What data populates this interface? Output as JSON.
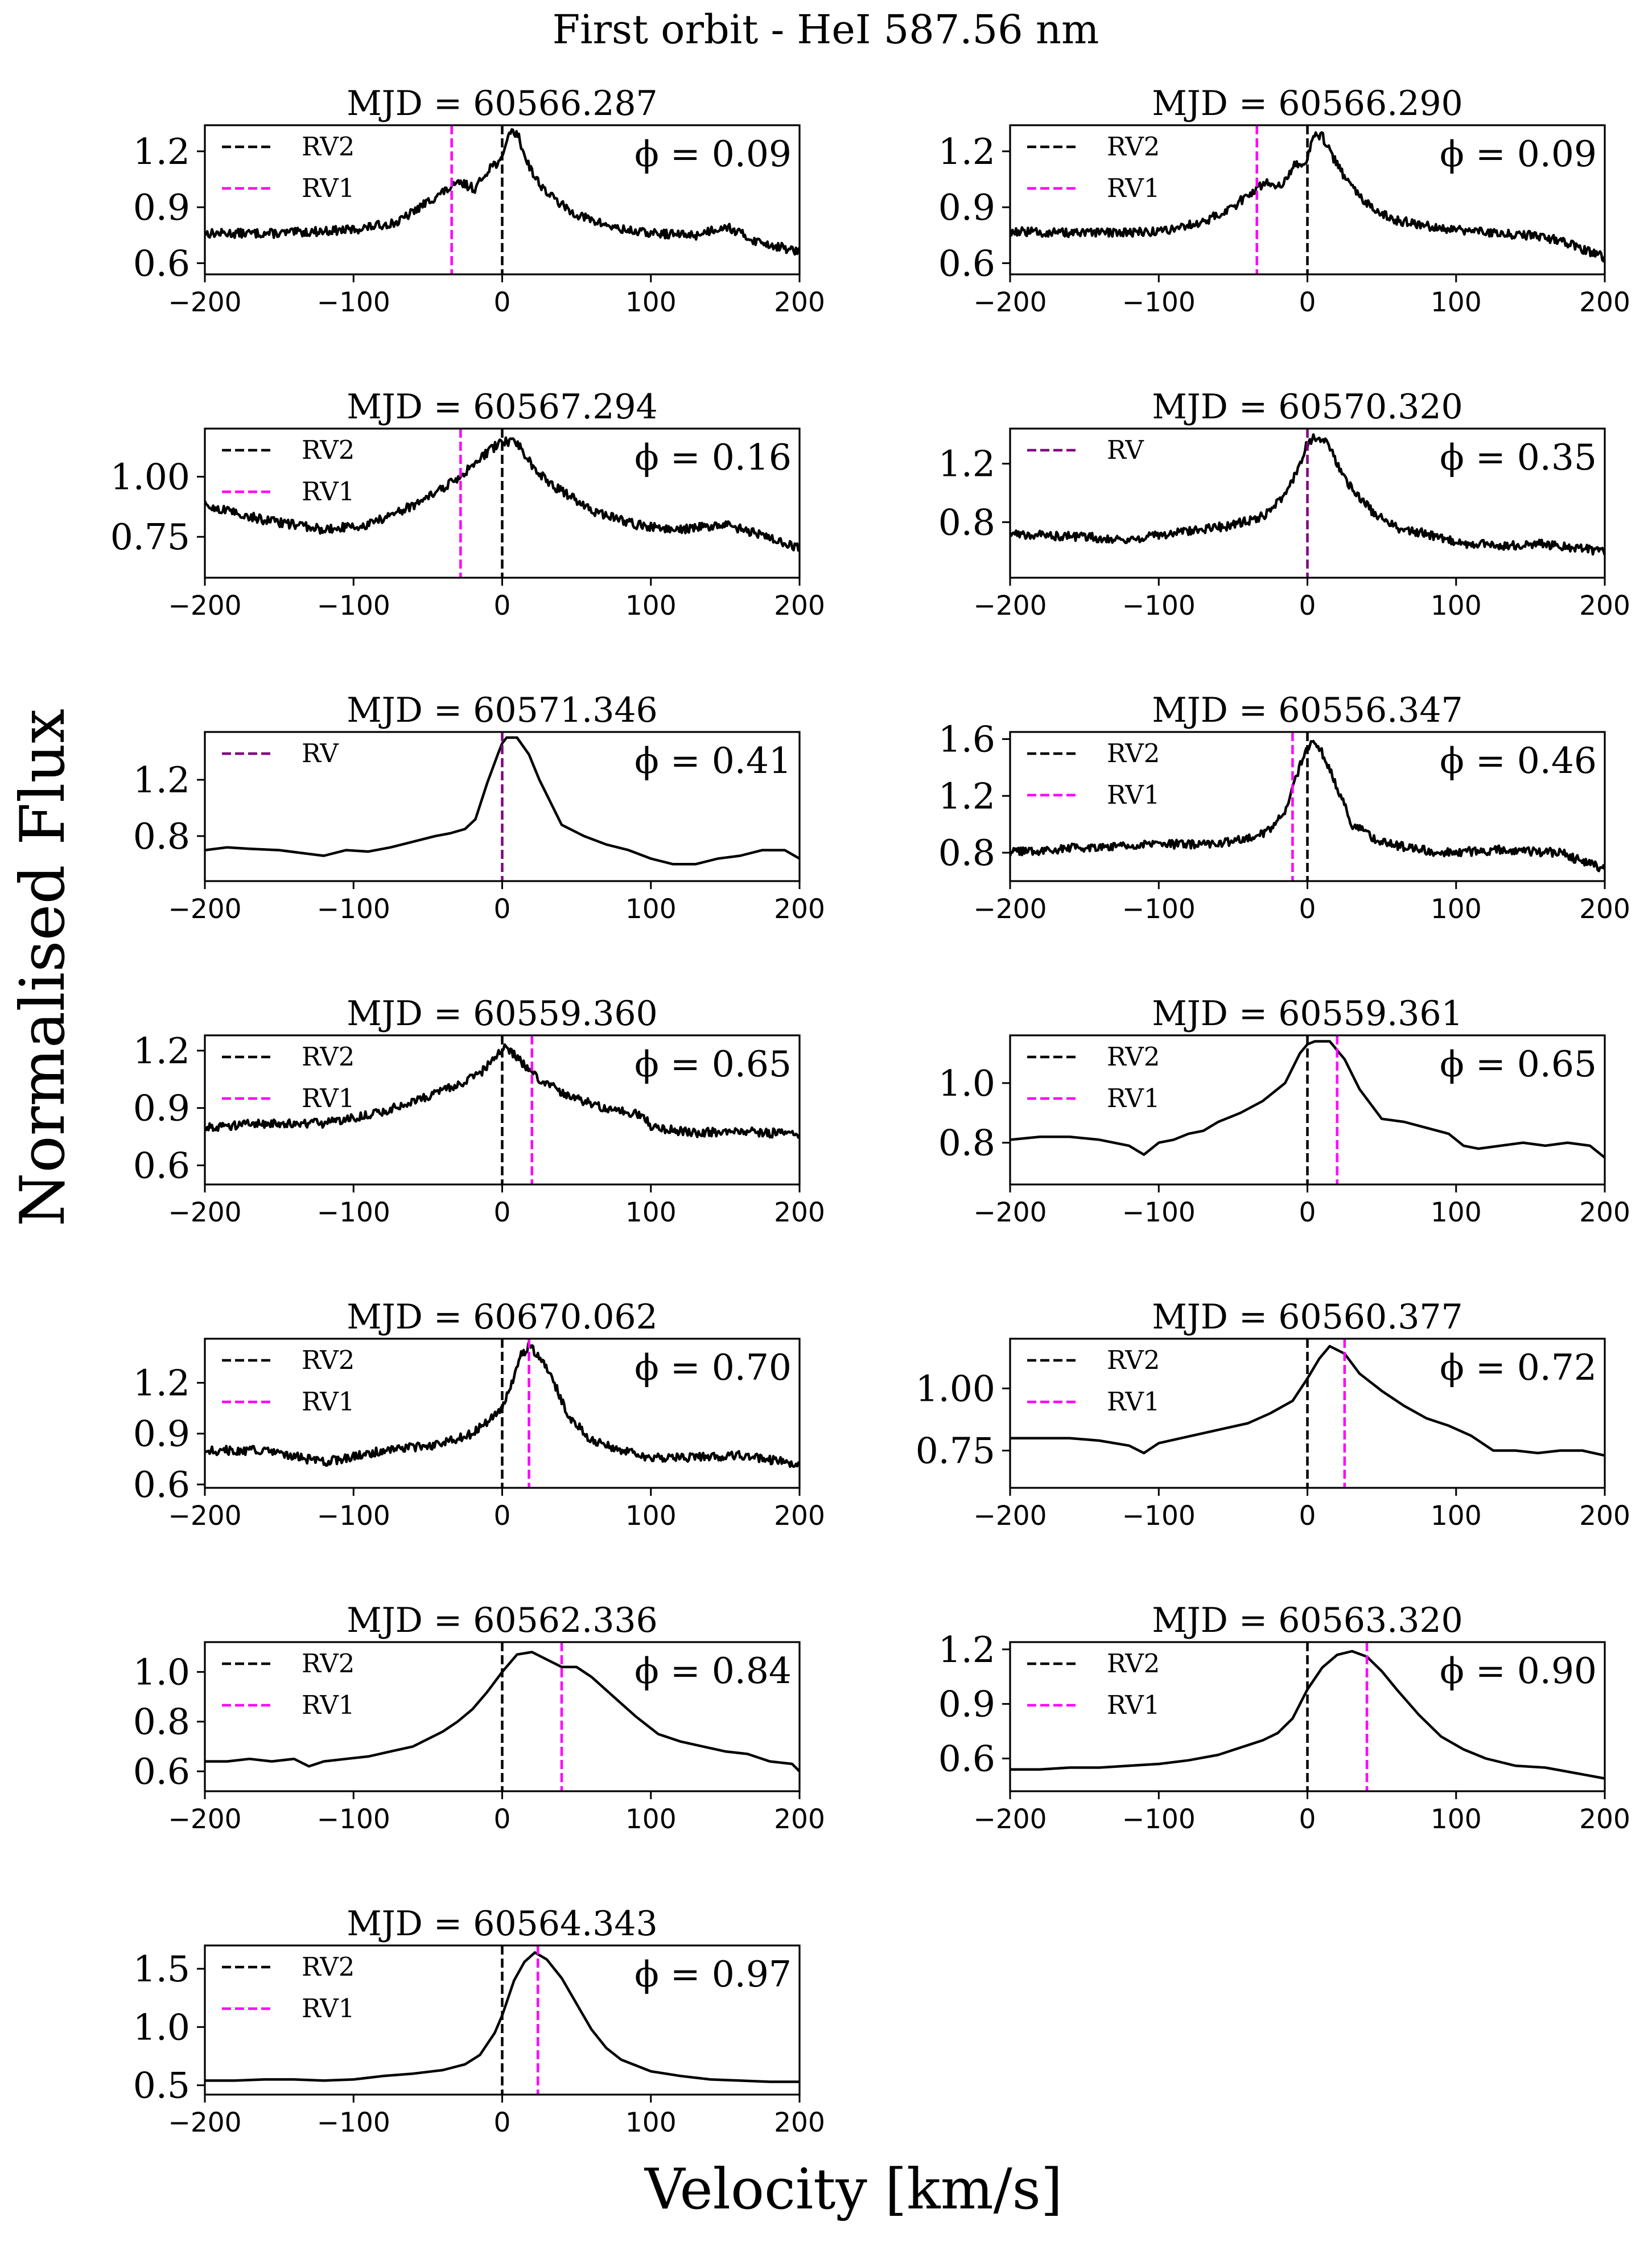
{
  "figure": {
    "title": "First orbit - HeI 587.56 nm",
    "xlabel": "Velocity [km/s]",
    "ylabel": "Normalised Flux"
  },
  "colors": {
    "line": "#000000",
    "rv1": "#ff00ff",
    "rv2": "#000000",
    "rv": "#800080"
  },
  "chart_data": [
    {
      "type": "line",
      "title": "MJD = 60566.287",
      "phase_label": "ϕ = 0.09",
      "style": "noisy",
      "xlim": [
        -200,
        200
      ],
      "ylim": [
        0.54,
        1.34
      ],
      "xticks": [
        -200,
        -100,
        0,
        100,
        200
      ],
      "xtick_labels": [
        "−200",
        "−100",
        "0",
        "100",
        "200"
      ],
      "yticks": [
        0.6,
        0.9,
        1.2
      ],
      "ytick_labels": [
        "0.6",
        "0.9",
        "1.2"
      ],
      "rv_lines": [
        {
          "name": "RV2",
          "v": 0
        },
        {
          "name": "RV1",
          "v": -34
        }
      ],
      "x": [
        -200,
        -150,
        -100,
        -70,
        -50,
        -38,
        -28,
        -18,
        -8,
        0,
        4,
        10,
        15,
        22,
        30,
        45,
        60,
        80,
        100,
        130,
        150,
        170,
        200
      ],
      "y": [
        0.76,
        0.76,
        0.78,
        0.82,
        0.93,
        0.99,
        1.03,
        1.0,
        1.12,
        1.15,
        1.3,
        1.3,
        1.18,
        1.06,
        0.98,
        0.88,
        0.83,
        0.78,
        0.76,
        0.75,
        0.8,
        0.72,
        0.66
      ]
    },
    {
      "type": "line",
      "title": "MJD = 60566.290",
      "phase_label": "ϕ = 0.09",
      "style": "noisy",
      "xlim": [
        -200,
        200
      ],
      "ylim": [
        0.54,
        1.34
      ],
      "xticks": [
        -200,
        -100,
        0,
        100,
        200
      ],
      "xtick_labels": [
        "−200",
        "−100",
        "0",
        "100",
        "200"
      ],
      "yticks": [
        0.6,
        0.9,
        1.2
      ],
      "ytick_labels": [
        "0.6",
        "0.9",
        "1.2"
      ],
      "rv_lines": [
        {
          "name": "RV2",
          "v": 0
        },
        {
          "name": "RV1",
          "v": -34
        }
      ],
      "x": [
        -200,
        -150,
        -100,
        -70,
        -50,
        -38,
        -28,
        -18,
        -8,
        0,
        4,
        10,
        15,
        22,
        30,
        45,
        60,
        80,
        100,
        130,
        150,
        170,
        200
      ],
      "y": [
        0.77,
        0.76,
        0.77,
        0.82,
        0.9,
        0.98,
        1.03,
        1.02,
        1.13,
        1.15,
        1.3,
        1.28,
        1.2,
        1.1,
        1.0,
        0.88,
        0.83,
        0.8,
        0.78,
        0.76,
        0.75,
        0.72,
        0.63
      ]
    },
    {
      "type": "line",
      "title": "MJD = 60567.294",
      "phase_label": "ϕ = 0.16",
      "style": "noisy",
      "xlim": [
        -200,
        200
      ],
      "ylim": [
        0.58,
        1.2
      ],
      "xticks": [
        -200,
        -100,
        0,
        100,
        200
      ],
      "xtick_labels": [
        "−200",
        "−100",
        "0",
        "100",
        "200"
      ],
      "yticks": [
        0.75,
        1.0
      ],
      "ytick_labels": [
        "0.75",
        "1.00"
      ],
      "rv_lines": [
        {
          "name": "RV2",
          "v": 0
        },
        {
          "name": "RV1",
          "v": -28
        }
      ],
      "x": [
        -200,
        -160,
        -120,
        -90,
        -60,
        -40,
        -25,
        -10,
        0,
        10,
        20,
        30,
        45,
        60,
        90,
        120,
        150,
        180,
        200
      ],
      "y": [
        0.88,
        0.82,
        0.78,
        0.8,
        0.88,
        0.95,
        1.02,
        1.1,
        1.15,
        1.14,
        1.05,
        0.98,
        0.92,
        0.86,
        0.8,
        0.78,
        0.8,
        0.75,
        0.7
      ]
    },
    {
      "type": "line",
      "title": "MJD = 60570.320",
      "phase_label": "ϕ = 0.35",
      "style": "noisy",
      "xlim": [
        -200,
        200
      ],
      "ylim": [
        0.42,
        1.44
      ],
      "xticks": [
        -200,
        -100,
        0,
        100,
        200
      ],
      "xtick_labels": [
        "−200",
        "−100",
        "0",
        "100",
        "200"
      ],
      "yticks": [
        0.8,
        1.2
      ],
      "ytick_labels": [
        "0.8",
        "1.2"
      ],
      "rv_lines": [
        {
          "name": "RV",
          "v": 0
        }
      ],
      "x": [
        -200,
        -150,
        -120,
        -80,
        -50,
        -30,
        -15,
        -5,
        0,
        5,
        12,
        20,
        30,
        45,
        60,
        80,
        100,
        130,
        160,
        200
      ],
      "y": [
        0.72,
        0.7,
        0.68,
        0.74,
        0.78,
        0.84,
        0.98,
        1.2,
        1.34,
        1.38,
        1.36,
        1.2,
        1.02,
        0.86,
        0.76,
        0.72,
        0.66,
        0.64,
        0.65,
        0.6
      ]
    },
    {
      "type": "line",
      "title": "MJD = 60571.346",
      "phase_label": "ϕ = 0.41",
      "style": "smooth",
      "xlim": [
        -200,
        200
      ],
      "ylim": [
        0.48,
        1.54
      ],
      "xticks": [
        -200,
        -100,
        0,
        100,
        200
      ],
      "xtick_labels": [
        "−200",
        "−100",
        "0",
        "100",
        "200"
      ],
      "yticks": [
        0.8,
        1.2
      ],
      "ytick_labels": [
        "0.8",
        "1.2"
      ],
      "rv_lines": [
        {
          "name": "RV",
          "v": 0
        }
      ],
      "x": [
        -200,
        -185,
        -170,
        -150,
        -135,
        -120,
        -105,
        -90,
        -75,
        -60,
        -45,
        -35,
        -25,
        -18,
        -10,
        -3,
        0,
        3,
        10,
        18,
        25,
        40,
        55,
        70,
        85,
        100,
        115,
        130,
        145,
        160,
        175,
        190,
        200
      ],
      "y": [
        0.7,
        0.72,
        0.71,
        0.7,
        0.68,
        0.66,
        0.7,
        0.69,
        0.72,
        0.76,
        0.8,
        0.82,
        0.85,
        0.92,
        1.18,
        1.38,
        1.46,
        1.5,
        1.5,
        1.38,
        1.2,
        0.88,
        0.8,
        0.74,
        0.7,
        0.64,
        0.6,
        0.6,
        0.64,
        0.66,
        0.7,
        0.7,
        0.64
      ]
    },
    {
      "type": "line",
      "title": "MJD = 60556.347",
      "phase_label": "ϕ = 0.46",
      "style": "noisy",
      "xlim": [
        -200,
        200
      ],
      "ylim": [
        0.6,
        1.65
      ],
      "xticks": [
        -200,
        -100,
        0,
        100,
        200
      ],
      "xtick_labels": [
        "−200",
        "−100",
        "0",
        "100",
        "200"
      ],
      "yticks": [
        0.8,
        1.2,
        1.6
      ],
      "ytick_labels": [
        "0.8",
        "1.2",
        "1.6"
      ],
      "rv_lines": [
        {
          "name": "RV2",
          "v": 0
        },
        {
          "name": "RV1",
          "v": -10
        }
      ],
      "x": [
        -200,
        -150,
        -100,
        -60,
        -40,
        -25,
        -15,
        -8,
        -2,
        2,
        8,
        15,
        22,
        30,
        45,
        60,
        90,
        130,
        170,
        200
      ],
      "y": [
        0.8,
        0.84,
        0.86,
        0.86,
        0.9,
        0.96,
        1.1,
        1.32,
        1.5,
        1.58,
        1.54,
        1.4,
        1.2,
        1.0,
        0.9,
        0.85,
        0.8,
        0.82,
        0.8,
        0.68
      ]
    },
    {
      "type": "line",
      "title": "MJD = 60559.360",
      "phase_label": "ϕ = 0.65",
      "style": "noisy",
      "xlim": [
        -200,
        200
      ],
      "ylim": [
        0.5,
        1.28
      ],
      "xticks": [
        -200,
        -100,
        0,
        100,
        200
      ],
      "xtick_labels": [
        "−200",
        "−100",
        "0",
        "100",
        "200"
      ],
      "yticks": [
        0.6,
        0.9,
        1.2
      ],
      "ytick_labels": [
        "0.6",
        "0.9",
        "1.2"
      ],
      "rv_lines": [
        {
          "name": "RV2",
          "v": 0
        },
        {
          "name": "RV1",
          "v": 20
        }
      ],
      "x": [
        -200,
        -160,
        -120,
        -80,
        -50,
        -30,
        -15,
        -5,
        0,
        8,
        15,
        25,
        40,
        60,
        80,
        95,
        100,
        130,
        160,
        200
      ],
      "y": [
        0.8,
        0.82,
        0.82,
        0.88,
        0.96,
        1.02,
        1.08,
        1.16,
        1.22,
        1.18,
        1.12,
        1.05,
        0.98,
        0.92,
        0.88,
        0.86,
        0.8,
        0.77,
        0.78,
        0.76
      ]
    },
    {
      "type": "line",
      "title": "MJD = 60559.361",
      "phase_label": "ϕ = 0.65",
      "style": "smooth",
      "xlim": [
        -200,
        200
      ],
      "ylim": [
        0.66,
        1.16
      ],
      "xticks": [
        -200,
        -100,
        0,
        100,
        200
      ],
      "xtick_labels": [
        "−200",
        "−100",
        "0",
        "100",
        "200"
      ],
      "yticks": [
        0.8,
        1.0
      ],
      "ytick_labels": [
        "0.8",
        "1.0"
      ],
      "rv_lines": [
        {
          "name": "RV2",
          "v": 0
        },
        {
          "name": "RV1",
          "v": 20
        }
      ],
      "x": [
        -200,
        -180,
        -160,
        -140,
        -120,
        -110,
        -100,
        -90,
        -80,
        -70,
        -60,
        -45,
        -30,
        -15,
        -5,
        0,
        5,
        15,
        25,
        35,
        50,
        65,
        80,
        95,
        105,
        115,
        130,
        145,
        160,
        175,
        190,
        200
      ],
      "y": [
        0.81,
        0.82,
        0.82,
        0.81,
        0.79,
        0.76,
        0.8,
        0.81,
        0.83,
        0.84,
        0.87,
        0.9,
        0.94,
        1.0,
        1.1,
        1.13,
        1.14,
        1.14,
        1.08,
        0.98,
        0.88,
        0.87,
        0.85,
        0.83,
        0.79,
        0.78,
        0.79,
        0.8,
        0.79,
        0.8,
        0.79,
        0.75
      ]
    },
    {
      "type": "line",
      "title": "MJD = 60670.062",
      "phase_label": "ϕ = 0.70",
      "style": "noisy",
      "xlim": [
        -200,
        200
      ],
      "ylim": [
        0.58,
        1.46
      ],
      "xticks": [
        -200,
        -100,
        0,
        100,
        200
      ],
      "xtick_labels": [
        "−200",
        "−100",
        "0",
        "100",
        "200"
      ],
      "yticks": [
        0.6,
        0.9,
        1.2
      ],
      "ytick_labels": [
        "0.6",
        "0.9",
        "1.2"
      ],
      "rv_lines": [
        {
          "name": "RV2",
          "v": 0
        },
        {
          "name": "RV1",
          "v": 18
        }
      ],
      "x": [
        -200,
        -160,
        -120,
        -80,
        -40,
        -20,
        -8,
        0,
        6,
        12,
        18,
        25,
        35,
        45,
        60,
        80,
        100,
        130,
        160,
        200
      ],
      "y": [
        0.8,
        0.8,
        0.73,
        0.8,
        0.84,
        0.9,
        0.98,
        1.05,
        1.18,
        1.35,
        1.42,
        1.36,
        1.2,
        1.0,
        0.86,
        0.8,
        0.76,
        0.76,
        0.77,
        0.72
      ]
    },
    {
      "type": "line",
      "title": "MJD = 60560.377",
      "phase_label": "ϕ = 0.72",
      "style": "smooth",
      "xlim": [
        -200,
        200
      ],
      "ylim": [
        0.6,
        1.2
      ],
      "xticks": [
        -200,
        -100,
        0,
        100,
        200
      ],
      "xtick_labels": [
        "−200",
        "−100",
        "0",
        "100",
        "200"
      ],
      "yticks": [
        0.75,
        1.0
      ],
      "ytick_labels": [
        "0.75",
        "1.00"
      ],
      "rv_lines": [
        {
          "name": "RV2",
          "v": 0
        },
        {
          "name": "RV1",
          "v": 25
        }
      ],
      "x": [
        -200,
        -180,
        -160,
        -140,
        -120,
        -110,
        -100,
        -85,
        -70,
        -55,
        -40,
        -25,
        -10,
        0,
        8,
        15,
        25,
        35,
        50,
        65,
        80,
        95,
        110,
        125,
        140,
        155,
        170,
        185,
        200
      ],
      "y": [
        0.8,
        0.8,
        0.8,
        0.79,
        0.77,
        0.74,
        0.78,
        0.8,
        0.82,
        0.84,
        0.86,
        0.9,
        0.95,
        1.04,
        1.12,
        1.17,
        1.14,
        1.06,
        0.99,
        0.93,
        0.88,
        0.85,
        0.81,
        0.75,
        0.75,
        0.74,
        0.75,
        0.75,
        0.73
      ]
    },
    {
      "type": "line",
      "title": "MJD = 60562.336",
      "phase_label": "ϕ = 0.84",
      "style": "smooth",
      "xlim": [
        -200,
        200
      ],
      "ylim": [
        0.52,
        1.12
      ],
      "xticks": [
        -200,
        -100,
        0,
        100,
        200
      ],
      "xtick_labels": [
        "−200",
        "−100",
        "0",
        "100",
        "200"
      ],
      "yticks": [
        0.6,
        0.8,
        1.0
      ],
      "ytick_labels": [
        "0.6",
        "0.8",
        "1.0"
      ],
      "rv_lines": [
        {
          "name": "RV2",
          "v": 0
        },
        {
          "name": "RV1",
          "v": 40
        }
      ],
      "x": [
        -200,
        -185,
        -170,
        -155,
        -140,
        -130,
        -120,
        -105,
        -90,
        -75,
        -60,
        -50,
        -40,
        -30,
        -20,
        -10,
        0,
        10,
        20,
        30,
        40,
        50,
        60,
        75,
        90,
        105,
        120,
        135,
        150,
        165,
        180,
        195,
        200
      ],
      "y": [
        0.64,
        0.64,
        0.65,
        0.64,
        0.65,
        0.62,
        0.64,
        0.65,
        0.66,
        0.68,
        0.7,
        0.73,
        0.76,
        0.8,
        0.85,
        0.92,
        1.0,
        1.07,
        1.08,
        1.05,
        1.02,
        1.02,
        0.98,
        0.9,
        0.82,
        0.75,
        0.72,
        0.7,
        0.68,
        0.67,
        0.64,
        0.63,
        0.6
      ]
    },
    {
      "type": "line",
      "title": "MJD = 60563.320",
      "phase_label": "ϕ = 0.90",
      "style": "smooth",
      "xlim": [
        -200,
        200
      ],
      "ylim": [
        0.42,
        1.24
      ],
      "xticks": [
        -200,
        -100,
        0,
        100,
        200
      ],
      "xtick_labels": [
        "−200",
        "−100",
        "0",
        "100",
        "200"
      ],
      "yticks": [
        0.6,
        0.9,
        1.2
      ],
      "ytick_labels": [
        "0.6",
        "0.9",
        "1.2"
      ],
      "rv_lines": [
        {
          "name": "RV2",
          "v": 0
        },
        {
          "name": "RV1",
          "v": 40
        }
      ],
      "x": [
        -200,
        -180,
        -160,
        -140,
        -120,
        -100,
        -80,
        -60,
        -45,
        -30,
        -20,
        -10,
        0,
        10,
        20,
        30,
        40,
        50,
        60,
        75,
        90,
        105,
        120,
        140,
        160,
        180,
        200
      ],
      "y": [
        0.54,
        0.54,
        0.55,
        0.55,
        0.56,
        0.57,
        0.59,
        0.62,
        0.66,
        0.7,
        0.74,
        0.82,
        0.98,
        1.1,
        1.17,
        1.19,
        1.16,
        1.08,
        0.98,
        0.84,
        0.72,
        0.65,
        0.6,
        0.56,
        0.55,
        0.52,
        0.49
      ]
    },
    {
      "type": "line",
      "title": "MJD = 60564.343",
      "phase_label": "ϕ = 0.97",
      "style": "smooth",
      "xlim": [
        -200,
        200
      ],
      "ylim": [
        0.42,
        1.7
      ],
      "xticks": [
        -200,
        -100,
        0,
        100,
        200
      ],
      "xtick_labels": [
        "−200",
        "−100",
        "0",
        "100",
        "200"
      ],
      "yticks": [
        0.5,
        1.0,
        1.5
      ],
      "ytick_labels": [
        "0.5",
        "1.0",
        "1.5"
      ],
      "rv_lines": [
        {
          "name": "RV2",
          "v": 0
        },
        {
          "name": "RV1",
          "v": 24
        }
      ],
      "x": [
        -200,
        -180,
        -160,
        -140,
        -120,
        -100,
        -80,
        -60,
        -40,
        -25,
        -15,
        -5,
        0,
        8,
        15,
        22,
        30,
        40,
        50,
        60,
        70,
        80,
        100,
        120,
        140,
        160,
        180,
        200
      ],
      "y": [
        0.54,
        0.54,
        0.55,
        0.55,
        0.54,
        0.55,
        0.58,
        0.6,
        0.63,
        0.68,
        0.76,
        0.95,
        1.1,
        1.4,
        1.56,
        1.64,
        1.58,
        1.42,
        1.2,
        0.98,
        0.82,
        0.72,
        0.62,
        0.58,
        0.55,
        0.54,
        0.53,
        0.53
      ]
    }
  ]
}
